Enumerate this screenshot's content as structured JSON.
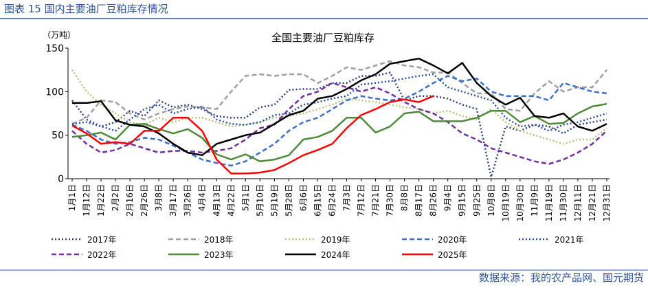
{
  "header": {
    "title": "图表 15 国内主要油厂豆粕库存情况"
  },
  "footer": {
    "source": "数据来源：我的农产品网、国元期货"
  },
  "chart_data": {
    "type": "line",
    "title": "全国主要油厂豆粕库存",
    "y_label": "（万吨）",
    "categories": [
      "1月1日",
      "1月12日",
      "1月22日",
      "2月2日",
      "2月16日",
      "2月26日",
      "3月8日",
      "3月17日",
      "3月26日",
      "4月4日",
      "4月13日",
      "4月22日",
      "5月1日",
      "5月10日",
      "5月19日",
      "5月28日",
      "6月6日",
      "6月15日",
      "6月24日",
      "7月3日",
      "7月12日",
      "7月21日",
      "7月30日",
      "8月8日",
      "8月17日",
      "8月26日",
      "9月4日",
      "9月15日",
      "9月25日",
      "10月8日",
      "10月19日",
      "10月30日",
      "11月9日",
      "11月19日",
      "11月30日",
      "12月11日",
      "12月21日",
      "12月31日"
    ],
    "ylim": [
      0,
      150
    ],
    "yticks": [
      0,
      50,
      100,
      150
    ],
    "series": [
      {
        "name": "2017年",
        "color": "#2f3f7a",
        "dash": "dotted",
        "values": [
          90,
          68,
          60,
          65,
          78,
          72,
          90,
          82,
          85,
          80,
          72,
          70,
          70,
          82,
          85,
          102,
          103,
          103,
          110,
          110,
          118,
          118,
          122,
          90,
          95,
          95,
          92,
          85,
          80,
          2,
          60,
          55,
          62,
          60,
          52,
          62,
          65,
          68
        ]
      },
      {
        "name": "2018年",
        "color": "#a0a0a0",
        "dash": "dashed",
        "values": [
          63,
          70,
          90,
          88,
          75,
          68,
          75,
          80,
          83,
          82,
          80,
          100,
          118,
          120,
          118,
          120,
          120,
          110,
          118,
          128,
          125,
          130,
          135,
          130,
          128,
          122,
          122,
          110,
          98,
          98,
          80,
          78,
          98,
          112,
          100,
          105,
          105,
          125
        ]
      },
      {
        "name": "2019年",
        "color": "#b5c27a",
        "dash": "dotted",
        "values": [
          125,
          100,
          85,
          75,
          65,
          62,
          70,
          65,
          70,
          70,
          65,
          60,
          62,
          65,
          70,
          72,
          75,
          80,
          85,
          92,
          90,
          88,
          85,
          82,
          80,
          75,
          78,
          72,
          68,
          80,
          65,
          55,
          50,
          45,
          40,
          45,
          45,
          58
        ]
      },
      {
        "name": "2020年",
        "color": "#3d6fc7",
        "dash": "dashed",
        "values": [
          62,
          55,
          45,
          40,
          42,
          47,
          45,
          38,
          30,
          22,
          18,
          15,
          20,
          30,
          40,
          55,
          65,
          70,
          80,
          90,
          95,
          92,
          90,
          92,
          100,
          110,
          118,
          112,
          115,
          100,
          95,
          95,
          95,
          90,
          110,
          105,
          100,
          98
        ]
      },
      {
        "name": "2021年",
        "color": "#2a4f9e",
        "dash": "dotted",
        "values": [
          63,
          65,
          60,
          55,
          68,
          80,
          85,
          75,
          80,
          83,
          68,
          63,
          62,
          65,
          73,
          75,
          85,
          88,
          92,
          95,
          108,
          110,
          112,
          115,
          118,
          120,
          105,
          100,
          95,
          90,
          70,
          60,
          62,
          55,
          62,
          65,
          70,
          75
        ]
      },
      {
        "name": "2022年",
        "color": "#7030a0",
        "dash": "dashed",
        "values": [
          55,
          40,
          30,
          33,
          40,
          35,
          30,
          32,
          32,
          30,
          32,
          35,
          45,
          58,
          62,
          80,
          95,
          100,
          110,
          105,
          100,
          105,
          98,
          88,
          80,
          75,
          65,
          52,
          45,
          35,
          30,
          25,
          20,
          17,
          22,
          30,
          40,
          55
        ]
      },
      {
        "name": "2023年",
        "color": "#4e8a3a",
        "dash": "solid",
        "values": [
          48,
          50,
          53,
          45,
          62,
          63,
          57,
          52,
          57,
          47,
          28,
          22,
          28,
          20,
          22,
          27,
          45,
          48,
          55,
          70,
          70,
          53,
          60,
          75,
          77,
          66,
          66,
          66,
          70,
          78,
          78,
          65,
          72,
          63,
          64,
          75,
          83,
          86
        ]
      },
      {
        "name": "2024年",
        "color": "#000000",
        "dash": "solid",
        "values": [
          87,
          87,
          89,
          67,
          62,
          60,
          52,
          40,
          30,
          27,
          40,
          45,
          50,
          53,
          63,
          73,
          78,
          92,
          95,
          103,
          113,
          120,
          132,
          135,
          138,
          130,
          121,
          133,
          110,
          95,
          85,
          93,
          72,
          70,
          75,
          60,
          55,
          63
        ]
      },
      {
        "name": "2025年",
        "color": "#ff0000",
        "dash": "solid",
        "values": [
          61,
          52,
          40,
          42,
          40,
          55,
          55,
          70,
          70,
          55,
          22,
          6,
          6,
          7,
          10,
          18,
          27,
          33,
          40,
          58,
          73,
          80,
          88,
          91,
          88,
          95,
          null,
          null,
          null,
          null,
          null,
          null,
          null,
          null,
          null,
          null,
          null,
          null
        ]
      }
    ]
  }
}
